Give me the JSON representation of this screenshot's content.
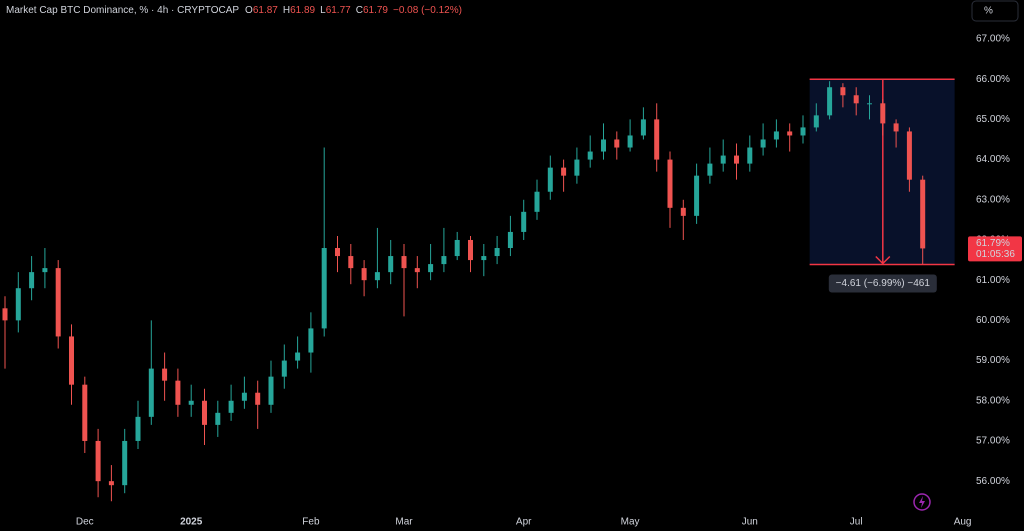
{
  "chart_data": {
    "type": "candlestick",
    "title": "Market Cap BTC Dominance, % · 4h · CRYPTOCAP",
    "ohlc_legend": [
      {
        "key": "O",
        "value": "61.87"
      },
      {
        "key": "H",
        "value": "61.89"
      },
      {
        "key": "L",
        "value": "61.77"
      },
      {
        "key": "C",
        "value": "61.79"
      }
    ],
    "change": "−0.08 (−0.12%)",
    "scale_button": "%",
    "up_color": "#26a69a",
    "down_color": "#ef5350",
    "categories": [
      null,
      null,
      null,
      null,
      null,
      null,
      "Dec",
      null,
      null,
      null,
      null,
      null,
      null,
      null,
      "2025",
      null,
      null,
      null,
      null,
      null,
      null,
      null,
      null,
      "Feb",
      null,
      null,
      null,
      null,
      null,
      null,
      "Mar",
      null,
      null,
      null,
      null,
      null,
      null,
      null,
      null,
      "Apr",
      null,
      null,
      null,
      null,
      null,
      null,
      null,
      "May",
      null,
      null,
      null,
      null,
      null,
      null,
      null,
      null,
      "Jun",
      null,
      null,
      null,
      null,
      null,
      null,
      null,
      "Jul",
      null,
      null,
      null,
      null,
      null,
      null,
      null,
      "Aug"
    ],
    "open": [
      60.3,
      60.0,
      60.8,
      61.2,
      61.3,
      59.6,
      58.4,
      57.0,
      56.0,
      55.9,
      57.0,
      57.6,
      58.8,
      58.5,
      57.9,
      58.0,
      57.4,
      57.7,
      58.0,
      58.2,
      57.9,
      58.6,
      59.0,
      59.2,
      59.8,
      61.8,
      61.6,
      61.3,
      61.0,
      61.2,
      61.6,
      61.3,
      61.2,
      61.4,
      61.6,
      62.0,
      61.5,
      61.6,
      61.8,
      62.2,
      62.7,
      63.2,
      63.8,
      63.6,
      64.0,
      64.2,
      64.5,
      64.3,
      64.6,
      65.0,
      64.0,
      62.8,
      62.6,
      63.6,
      63.9,
      64.1,
      63.9,
      64.3,
      64.5,
      64.7,
      64.6,
      64.8,
      65.1,
      65.8,
      65.6,
      65.4,
      65.4,
      64.9,
      64.7,
      63.5,
      null,
      null,
      null
    ],
    "high": [
      60.6,
      61.2,
      61.6,
      61.8,
      61.5,
      59.9,
      58.6,
      57.3,
      56.4,
      57.3,
      58.0,
      60.0,
      59.2,
      58.8,
      58.4,
      58.3,
      58.0,
      58.4,
      58.6,
      58.5,
      59.0,
      59.4,
      59.6,
      60.2,
      64.3,
      62.1,
      61.9,
      61.5,
      62.3,
      62.0,
      61.9,
      61.6,
      61.9,
      62.3,
      62.2,
      62.1,
      61.9,
      62.1,
      62.6,
      63.0,
      63.5,
      64.1,
      64.0,
      64.3,
      64.6,
      64.9,
      64.7,
      65.0,
      65.3,
      65.4,
      64.2,
      63.0,
      63.9,
      64.3,
      64.5,
      64.4,
      64.6,
      64.9,
      65.0,
      64.9,
      65.1,
      65.4,
      65.95,
      65.9,
      65.8,
      65.6,
      65.5,
      65.0,
      64.8,
      63.6,
      null,
      null,
      null
    ],
    "low": [
      58.8,
      59.7,
      60.5,
      60.8,
      59.3,
      57.9,
      56.7,
      55.6,
      55.5,
      55.7,
      56.8,
      57.4,
      58.0,
      57.6,
      57.6,
      56.9,
      57.1,
      57.5,
      57.8,
      57.3,
      57.7,
      58.3,
      58.8,
      58.7,
      59.6,
      61.2,
      60.9,
      60.6,
      60.8,
      60.9,
      60.1,
      60.8,
      61.0,
      61.2,
      61.5,
      61.2,
      61.1,
      61.4,
      61.6,
      62.0,
      62.5,
      63.0,
      63.2,
      63.4,
      63.8,
      64.0,
      64.0,
      64.2,
      64.5,
      63.7,
      62.3,
      62.0,
      62.4,
      63.4,
      63.7,
      63.5,
      63.7,
      64.1,
      64.3,
      64.2,
      64.4,
      64.7,
      65.0,
      65.3,
      65.1,
      65.0,
      64.6,
      64.3,
      63.2,
      61.4,
      null,
      null,
      null
    ],
    "close": [
      60.0,
      60.8,
      61.2,
      61.3,
      59.6,
      58.4,
      57.0,
      56.0,
      55.9,
      57.0,
      57.6,
      58.8,
      58.5,
      57.9,
      58.0,
      57.4,
      57.7,
      58.0,
      58.2,
      57.9,
      58.6,
      59.0,
      59.2,
      59.8,
      61.8,
      61.6,
      61.3,
      61.0,
      61.2,
      61.6,
      61.3,
      61.2,
      61.4,
      61.6,
      62.0,
      61.5,
      61.6,
      61.8,
      62.2,
      62.7,
      63.2,
      63.8,
      63.6,
      64.0,
      64.2,
      64.5,
      64.3,
      64.6,
      65.0,
      64.0,
      62.8,
      62.6,
      63.6,
      63.9,
      64.1,
      63.9,
      64.3,
      64.5,
      64.7,
      64.6,
      64.8,
      65.1,
      65.8,
      65.6,
      65.4,
      65.4,
      64.9,
      64.7,
      63.5,
      61.79,
      null,
      null,
      null
    ],
    "ylim": [
      54.76,
      67.97
    ],
    "yticks": [
      {
        "value": 56,
        "label": "56.00%"
      },
      {
        "value": 57,
        "label": "57.00%"
      },
      {
        "value": 58,
        "label": "58.00%"
      },
      {
        "value": 59,
        "label": "59.00%"
      },
      {
        "value": 60,
        "label": "60.00%"
      },
      {
        "value": 61,
        "label": "61.00%"
      },
      {
        "value": 62,
        "label": "62.00%"
      },
      {
        "value": 63,
        "label": "63.00%"
      },
      {
        "value": 64,
        "label": "64.00%"
      },
      {
        "value": 65,
        "label": "65.00%"
      },
      {
        "value": 66,
        "label": "66.00%"
      },
      {
        "value": 67,
        "label": "67.00%"
      }
    ],
    "last_price": {
      "value": 61.79,
      "label": "61.79%",
      "countdown": "01:05:36",
      "color": "#f23645"
    },
    "measure": {
      "from": 66.0,
      "to": 61.39,
      "label": "−4.61 (−6.99%) −461",
      "color": "#f23645"
    }
  }
}
